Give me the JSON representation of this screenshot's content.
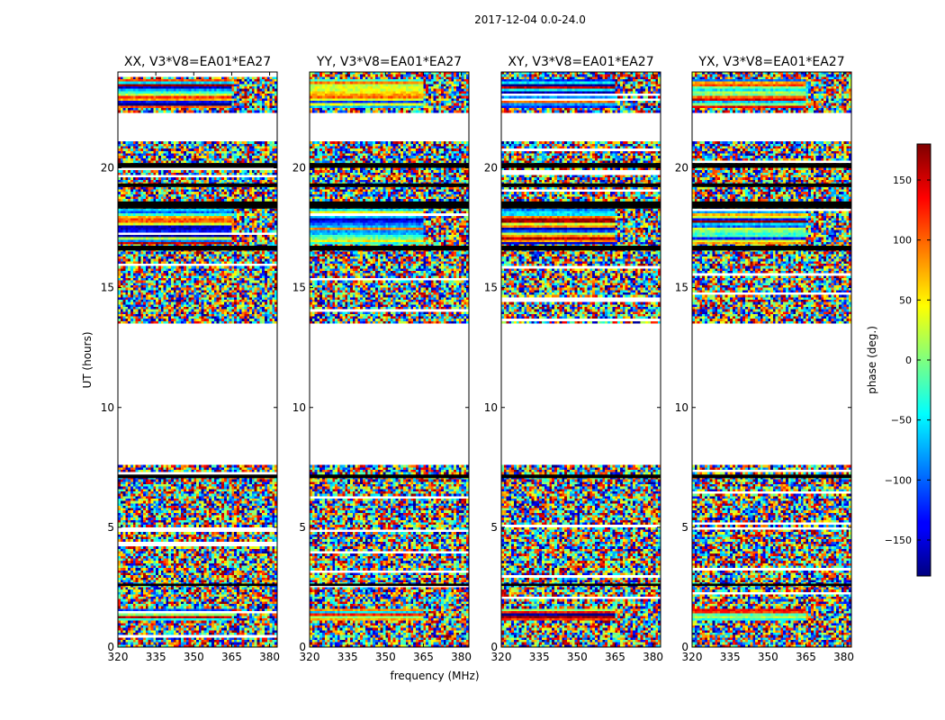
{
  "figure": {
    "title": "2017-12-04 0.0-24.0",
    "ylabel": "UT (hours)",
    "xlabel": "frequency (MHz)"
  },
  "chart_data": [
    {
      "type": "heatmap",
      "title": "XX, V3*V8=EA01*EA27",
      "xlim": [
        320,
        383
      ],
      "ylim": [
        0,
        24
      ],
      "xticks": [
        320,
        335,
        350,
        365,
        380
      ],
      "yticks": [
        0,
        5,
        10,
        15,
        20
      ],
      "flagged_ut_ranges": [
        [
          7.6,
          13.5
        ],
        [
          21.1,
          22.3
        ]
      ]
    },
    {
      "type": "heatmap",
      "title": "YY, V3*V8=EA01*EA27",
      "xlim": [
        320,
        383
      ],
      "ylim": [
        0,
        24
      ],
      "xticks": [
        320,
        335,
        350,
        365,
        380
      ],
      "yticks": [
        0,
        5,
        10,
        15,
        20
      ],
      "flagged_ut_ranges": [
        [
          7.6,
          13.5
        ],
        [
          21.1,
          22.3
        ]
      ]
    },
    {
      "type": "heatmap",
      "title": "XY, V3*V8=EA01*EA27",
      "xlim": [
        320,
        383
      ],
      "ylim": [
        0,
        24
      ],
      "xticks": [
        320,
        335,
        350,
        365,
        380
      ],
      "yticks": [
        0,
        5,
        10,
        15,
        20
      ],
      "flagged_ut_ranges": [
        [
          7.6,
          13.5
        ],
        [
          21.1,
          22.3
        ]
      ]
    },
    {
      "type": "heatmap",
      "title": "YX, V3*V8=EA01*EA27",
      "xlim": [
        320,
        383
      ],
      "ylim": [
        0,
        24
      ],
      "xticks": [
        320,
        335,
        350,
        365,
        380
      ],
      "yticks": [
        0,
        5,
        10,
        15,
        20
      ],
      "flagged_ut_ranges": [
        [
          7.6,
          13.5
        ],
        [
          21.1,
          22.3
        ]
      ]
    }
  ],
  "colorbar": {
    "label": "phase (deg.)",
    "range": [
      -180,
      180
    ],
    "ticks": [
      150,
      100,
      50,
      0,
      -50,
      -100,
      -150
    ],
    "tick_labels": [
      "150",
      "100",
      "50",
      "0",
      "−50",
      "−100",
      "−150"
    ],
    "colormap": "jet"
  }
}
